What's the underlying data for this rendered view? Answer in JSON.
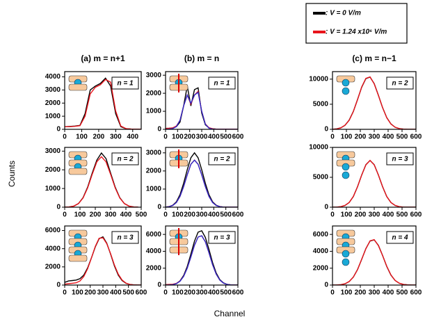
{
  "legend": [
    {
      "name": ": V = 0 V/m",
      "color": "#000000"
    },
    {
      "name": ": V = 1.24  x10⁶ V/m",
      "color": "#e8141b"
    }
  ],
  "ylabel": "Counts",
  "xlabel": "Channel",
  "chart_data": [
    {
      "type": "line",
      "title": "(a) m = n+1",
      "annotation": "n = 1",
      "x": [
        0,
        30,
        60,
        90,
        120,
        150,
        180,
        210,
        240,
        270,
        300,
        330,
        360,
        390,
        420,
        450
      ],
      "series": [
        {
          "color": "#000000",
          "values": [
            200,
            220,
            250,
            300,
            1200,
            3000,
            3300,
            3500,
            3900,
            3300,
            1200,
            200,
            50,
            20,
            10,
            10
          ]
        },
        {
          "color": "#e8141b",
          "values": [
            200,
            200,
            230,
            280,
            1000,
            2700,
            3200,
            3400,
            3800,
            3600,
            1400,
            250,
            60,
            20,
            10,
            10
          ]
        }
      ],
      "xlim": [
        0,
        450
      ],
      "xticks": [
        0,
        100,
        200,
        300,
        400
      ],
      "ylim": [
        0,
        4400
      ],
      "yticks": [
        0,
        1000,
        2000,
        3000,
        4000
      ]
    },
    {
      "type": "line",
      "title": "(b) m = n",
      "annotation": "n = 1",
      "x": [
        0,
        30,
        60,
        90,
        120,
        150,
        180,
        210,
        240,
        270,
        300,
        330,
        360,
        390,
        420,
        450,
        480,
        510,
        540,
        570,
        600
      ],
      "series": [
        {
          "color": "#000000",
          "values": [
            50,
            60,
            80,
            150,
            400,
            1300,
            2400,
            1300,
            2200,
            2300,
            900,
            250,
            80,
            30,
            10,
            10,
            10,
            10,
            10,
            10,
            10
          ]
        },
        {
          "color": "#e8141b",
          "values": [
            50,
            60,
            80,
            180,
            500,
            1300,
            1900,
            1400,
            1900,
            2100,
            1000,
            300,
            90,
            30,
            10,
            10,
            10,
            10,
            10,
            10,
            10
          ]
        },
        {
          "color": "#2a2acc",
          "values": [
            0,
            10,
            40,
            150,
            500,
            1300,
            1900,
            1450,
            1900,
            2050,
            1000,
            280,
            60,
            10,
            0,
            0,
            0,
            0,
            0,
            0,
            0
          ]
        }
      ],
      "xlim": [
        0,
        600
      ],
      "xticks": [
        0,
        100,
        200,
        300,
        400,
        500,
        600
      ],
      "ylim": [
        0,
        3200
      ],
      "yticks": [
        0,
        1000,
        2000,
        3000
      ]
    },
    {
      "type": "line",
      "title": "(c) m = n−1",
      "annotation": "n = 2",
      "x": [
        0,
        30,
        60,
        90,
        120,
        150,
        180,
        210,
        240,
        270,
        300,
        330,
        360,
        390,
        420,
        450,
        480,
        510,
        540,
        570,
        600
      ],
      "series": [
        {
          "color": "#000000",
          "values": [
            26,
            95,
            300,
            800,
            1840,
            3580,
            5940,
            8400,
            10100,
            10400,
            9100,
            6790,
            4320,
            2340,
            1075,
            420,
            140,
            40,
            20,
            10,
            10
          ]
        },
        {
          "color": "#e8141b",
          "values": [
            30,
            90,
            310,
            820,
            1800,
            3550,
            5900,
            8450,
            10150,
            10450,
            9050,
            6750,
            4350,
            2300,
            1050,
            430,
            150,
            40,
            20,
            10,
            10
          ]
        }
      ],
      "xlim": [
        0,
        600
      ],
      "xticks": [
        0,
        100,
        200,
        300,
        400,
        500,
        600
      ],
      "ylim": [
        0,
        11500
      ],
      "yticks": [
        0,
        5000,
        10000
      ]
    },
    {
      "type": "line",
      "annotation": "n = 2",
      "x": [
        0,
        30,
        60,
        90,
        120,
        150,
        180,
        210,
        240,
        270,
        300,
        330,
        360,
        390,
        420,
        450,
        480
      ],
      "series": [
        {
          "color": "#000000",
          "values": [
            5,
            15,
            60,
            195,
            510,
            1070,
            1830,
            2520,
            2900,
            2600,
            1830,
            1070,
            510,
            195,
            60,
            15,
            5
          ]
        },
        {
          "color": "#e8141b",
          "values": [
            5,
            15,
            60,
            195,
            490,
            1030,
            1760,
            2430,
            2700,
            2430,
            1760,
            1030,
            490,
            195,
            60,
            15,
            5
          ]
        }
      ],
      "xlim": [
        0,
        500
      ],
      "xticks": [
        0,
        100,
        200,
        300,
        400,
        500
      ],
      "ylim": [
        0,
        3200
      ],
      "yticks": [
        0,
        1000,
        2000,
        3000
      ]
    },
    {
      "type": "line",
      "annotation": "n = 2",
      "x": [
        0,
        30,
        60,
        90,
        120,
        150,
        180,
        210,
        240,
        270,
        300,
        330,
        360,
        390,
        420,
        450,
        480,
        510,
        540,
        570,
        600
      ],
      "series": [
        {
          "color": "#000000",
          "values": [
            9,
            33,
            111,
            300,
            690,
            1320,
            2070,
            2730,
            3000,
            2730,
            2070,
            1320,
            690,
            300,
            111,
            33,
            9,
            3,
            0,
            0,
            0
          ]
        },
        {
          "color": "#e8141b",
          "values": [
            8,
            29,
            96,
            260,
            600,
            1140,
            1790,
            2370,
            2600,
            2370,
            1790,
            1140,
            600,
            260,
            96,
            29,
            8,
            3,
            0,
            0,
            0
          ]
        },
        {
          "color": "#2a2acc",
          "values": [
            8,
            28,
            95,
            258,
            598,
            1138,
            1788,
            2368,
            2598,
            2368,
            1788,
            1138,
            598,
            258,
            95,
            28,
            8,
            3,
            0,
            0,
            0
          ]
        }
      ],
      "xlim": [
        0,
        600
      ],
      "xticks": [
        0,
        100,
        200,
        300,
        400,
        500,
        600
      ],
      "ylim": [
        0,
        3300
      ],
      "yticks": [
        0,
        1000,
        2000,
        3000
      ]
    },
    {
      "type": "line",
      "annotation": "n = 3",
      "x": [
        0,
        30,
        60,
        90,
        120,
        150,
        180,
        210,
        240,
        270,
        300,
        330,
        360,
        390,
        420,
        450,
        480,
        510,
        540,
        570,
        600
      ],
      "series": [
        {
          "color": "#000000",
          "values": [
            0,
            23,
            86,
            290,
            780,
            1790,
            3430,
            5380,
            7100,
            7800,
            7100,
            5380,
            3430,
            1790,
            780,
            290,
            86,
            23,
            0,
            0,
            0
          ]
        },
        {
          "color": "#e8141b",
          "values": [
            0,
            25,
            90,
            300,
            790,
            1800,
            3420,
            5400,
            7080,
            7820,
            7080,
            5400,
            3440,
            1780,
            790,
            300,
            90,
            25,
            0,
            0,
            0
          ]
        }
      ],
      "xlim": [
        0,
        600
      ],
      "xticks": [
        0,
        100,
        200,
        300,
        400,
        500,
        600
      ],
      "ylim": [
        0,
        10000
      ],
      "yticks": [
        0,
        5000,
        10000
      ]
    },
    {
      "type": "line",
      "annotation": "n = 3",
      "x": [
        0,
        30,
        60,
        90,
        120,
        150,
        180,
        210,
        240,
        270,
        300,
        330,
        360,
        390,
        420,
        450,
        480,
        510,
        540,
        570,
        600
      ],
      "series": [
        {
          "color": "#000000",
          "values": [
            300,
            450,
            500,
            550,
            700,
            1100,
            1900,
            3000,
            4200,
            5100,
            5300,
            4600,
            3400,
            2100,
            1100,
            500,
            200,
            70,
            20,
            5,
            0
          ]
        },
        {
          "color": "#e8141b",
          "values": [
            100,
            150,
            200,
            250,
            450,
            950,
            1800,
            3000,
            4250,
            5150,
            5200,
            4550,
            3450,
            2200,
            1200,
            550,
            220,
            70,
            20,
            5,
            0
          ]
        }
      ],
      "xlim": [
        0,
        600
      ],
      "xticks": [
        0,
        100,
        200,
        300,
        400,
        500,
        600
      ],
      "ylim": [
        0,
        6500
      ],
      "yticks": [
        0,
        2000,
        4000,
        6000
      ]
    },
    {
      "type": "line",
      "annotation": "n = 3",
      "x": [
        0,
        30,
        60,
        90,
        120,
        150,
        180,
        210,
        240,
        270,
        300,
        330,
        360,
        390,
        420,
        450,
        480,
        510,
        540,
        570,
        600
      ],
      "series": [
        {
          "color": "#000000",
          "values": [
            4,
            16,
            60,
            180,
            500,
            1140,
            2210,
            3670,
            5200,
            6270,
            6430,
            5650,
            4230,
            2670,
            1430,
            650,
            260,
            85,
            26,
            7,
            0
          ]
        },
        {
          "color": "#e8141b",
          "values": [
            60,
            70,
            100,
            200,
            480,
            1050,
            2020,
            3330,
            4720,
            5690,
            5840,
            5130,
            3840,
            2420,
            1300,
            590,
            240,
            77,
            24,
            6,
            0
          ]
        },
        {
          "color": "#2a2acc",
          "values": [
            4,
            14,
            53,
            165,
            450,
            1030,
            2000,
            3330,
            4720,
            5690,
            5840,
            5130,
            3840,
            2420,
            1300,
            590,
            240,
            77,
            24,
            6,
            0
          ]
        }
      ],
      "xlim": [
        0,
        600
      ],
      "xticks": [
        0,
        100,
        200,
        300,
        400,
        500,
        600
      ],
      "ylim": [
        0,
        7000
      ],
      "yticks": [
        0,
        2000,
        4000,
        6000
      ]
    },
    {
      "type": "line",
      "annotation": "n = 4",
      "x": [
        0,
        30,
        60,
        90,
        120,
        150,
        180,
        210,
        240,
        270,
        300,
        330,
        360,
        390,
        420,
        450,
        480,
        510,
        540,
        570,
        600
      ],
      "series": [
        {
          "color": "#000000",
          "values": [
            3,
            13,
            49,
            150,
            410,
            945,
            1840,
            3050,
            4320,
            5210,
            5350,
            4700,
            3510,
            2210,
            1190,
            540,
            216,
            70,
            22,
            5,
            0
          ]
        },
        {
          "color": "#e8141b",
          "values": [
            5,
            15,
            52,
            160,
            420,
            950,
            1830,
            3060,
            4300,
            5250,
            5380,
            4680,
            3500,
            2230,
            1200,
            550,
            220,
            72,
            22,
            5,
            0
          ]
        }
      ],
      "xlim": [
        0,
        600
      ],
      "xticks": [
        0,
        100,
        200,
        300,
        400,
        500,
        600
      ],
      "ylim": [
        0,
        7000
      ],
      "yticks": [
        0,
        2000,
        4000,
        6000
      ]
    }
  ]
}
